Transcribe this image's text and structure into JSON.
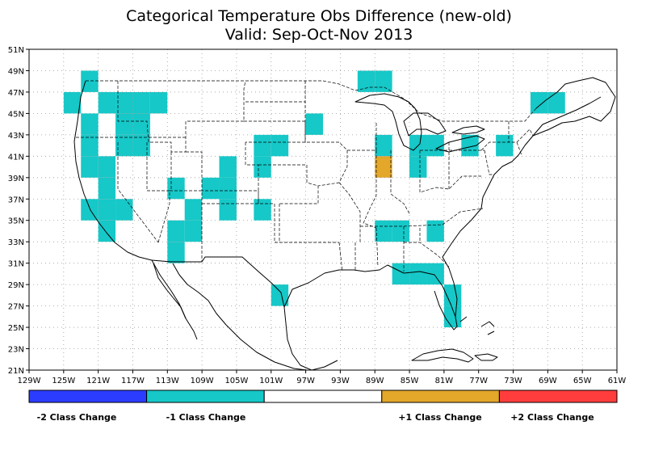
{
  "title_line1": "Categorical Temperature Obs Difference (new-old)",
  "title_line2": "Valid: Sep-Oct-Nov 2013",
  "lon_ticks": [
    "129W",
    "125W",
    "121W",
    "117W",
    "113W",
    "109W",
    "105W",
    "101W",
    "97W",
    "93W",
    "89W",
    "85W",
    "81W",
    "77W",
    "73W",
    "69W",
    "65W",
    "61W"
  ],
  "lat_ticks": [
    "21N",
    "23N",
    "25N",
    "27N",
    "29N",
    "31N",
    "33N",
    "35N",
    "37N",
    "39N",
    "41N",
    "43N",
    "45N",
    "47N",
    "49N",
    "51N"
  ],
  "legend": [
    {
      "label": "-2 Class Change",
      "color": "#2b3cff"
    },
    {
      "label": "-1 Class Change",
      "color": "#16c8c8"
    },
    {
      "label": "",
      "color": "#ffffff"
    },
    {
      "label": "+1 Class Change",
      "color": "#e3a72a"
    },
    {
      "label": "+2 Class Change",
      "color": "#ff3d3d"
    }
  ],
  "cell_size_deg": 2,
  "cells": [
    {
      "lon": -122,
      "lat": 48,
      "value": -1
    },
    {
      "lon": -124,
      "lat": 46,
      "value": -1
    },
    {
      "lon": -120,
      "lat": 46,
      "value": -1
    },
    {
      "lon": -118,
      "lat": 46,
      "value": -1
    },
    {
      "lon": -116,
      "lat": 46,
      "value": -1
    },
    {
      "lon": -114,
      "lat": 46,
      "value": -1
    },
    {
      "lon": -122,
      "lat": 44,
      "value": -1
    },
    {
      "lon": -118,
      "lat": 44,
      "value": -1
    },
    {
      "lon": -116,
      "lat": 44,
      "value": -1
    },
    {
      "lon": -122,
      "lat": 42,
      "value": -1
    },
    {
      "lon": -118,
      "lat": 42,
      "value": -1
    },
    {
      "lon": -116,
      "lat": 42,
      "value": -1
    },
    {
      "lon": -122,
      "lat": 40,
      "value": -1
    },
    {
      "lon": -120,
      "lat": 40,
      "value": -1
    },
    {
      "lon": -120,
      "lat": 38,
      "value": -1
    },
    {
      "lon": -122,
      "lat": 36,
      "value": -1
    },
    {
      "lon": -120,
      "lat": 36,
      "value": -1
    },
    {
      "lon": -118,
      "lat": 36,
      "value": -1
    },
    {
      "lon": -120,
      "lat": 34,
      "value": -1
    },
    {
      "lon": -112,
      "lat": 38,
      "value": -1
    },
    {
      "lon": -110,
      "lat": 36,
      "value": -1
    },
    {
      "lon": -112,
      "lat": 34,
      "value": -1
    },
    {
      "lon": -110,
      "lat": 34,
      "value": -1
    },
    {
      "lon": -112,
      "lat": 32,
      "value": -1
    },
    {
      "lon": -106,
      "lat": 40,
      "value": -1
    },
    {
      "lon": -108,
      "lat": 38,
      "value": -1
    },
    {
      "lon": -106,
      "lat": 38,
      "value": -1
    },
    {
      "lon": -106,
      "lat": 36,
      "value": -1
    },
    {
      "lon": -100,
      "lat": 42,
      "value": -1
    },
    {
      "lon": -102,
      "lat": 42,
      "value": -1
    },
    {
      "lon": -102,
      "lat": 40,
      "value": -1
    },
    {
      "lon": -102,
      "lat": 36,
      "value": -1
    },
    {
      "lon": -100,
      "lat": 28,
      "value": -1
    },
    {
      "lon": -96,
      "lat": 44,
      "value": -1
    },
    {
      "lon": -90,
      "lat": 48,
      "value": -1
    },
    {
      "lon": -88,
      "lat": 48,
      "value": -1
    },
    {
      "lon": -88,
      "lat": 42,
      "value": -1
    },
    {
      "lon": -88,
      "lat": 40,
      "value": 1
    },
    {
      "lon": -84,
      "lat": 42,
      "value": -1
    },
    {
      "lon": -82,
      "lat": 42,
      "value": -1
    },
    {
      "lon": -84,
      "lat": 40,
      "value": -1
    },
    {
      "lon": -78,
      "lat": 42,
      "value": -1
    },
    {
      "lon": -74,
      "lat": 42,
      "value": -1
    },
    {
      "lon": -70,
      "lat": 46,
      "value": -1
    },
    {
      "lon": -68,
      "lat": 46,
      "value": -1
    },
    {
      "lon": -88,
      "lat": 34,
      "value": -1
    },
    {
      "lon": -86,
      "lat": 34,
      "value": -1
    },
    {
      "lon": -82,
      "lat": 34,
      "value": -1
    },
    {
      "lon": -86,
      "lat": 30,
      "value": -1
    },
    {
      "lon": -84,
      "lat": 30,
      "value": -1
    },
    {
      "lon": -82,
      "lat": 30,
      "value": -1
    },
    {
      "lon": -80,
      "lat": 28,
      "value": -1
    },
    {
      "lon": -80,
      "lat": 26,
      "value": -1
    }
  ]
}
